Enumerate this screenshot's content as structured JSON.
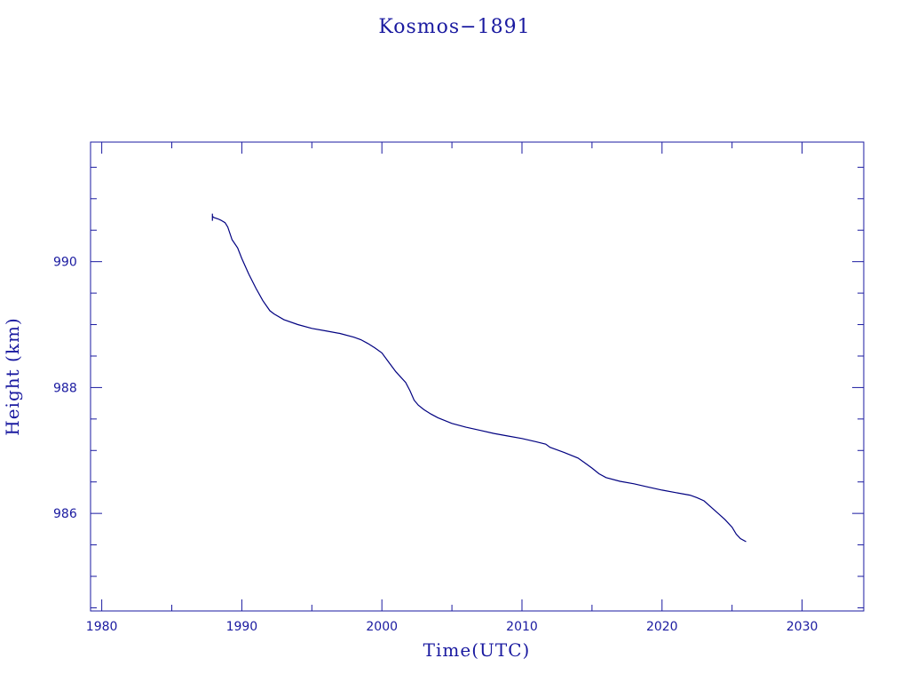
{
  "chart_data": {
    "type": "line",
    "title": "Kosmos−1891",
    "xlabel": "Time(UTC)",
    "ylabel": "Height (km)",
    "xlim": [
      1979.2,
      2034.4
    ],
    "ylim": [
      984.45,
      991.9
    ],
    "x_ticks": [
      1980,
      1990,
      2000,
      2010,
      2020,
      2030
    ],
    "x_tick_labels": [
      "1980",
      "1990",
      "2000",
      "2010",
      "2020",
      "2030"
    ],
    "y_ticks": [
      986,
      988,
      990
    ],
    "y_tick_labels": [
      "986",
      "988",
      "990"
    ],
    "grid": false,
    "colors": {
      "axis": "#1a1aa0",
      "line": "#000080",
      "text": "#1a1aa0"
    },
    "series": [
      {
        "x": [
          1987.9,
          1988.0,
          1988.3,
          1988.5,
          1988.8,
          1989.0,
          1989.3,
          1989.7,
          1990.0,
          1990.5,
          1991.0,
          1991.5,
          1992.0,
          1992.3,
          1993.0,
          1994.0,
          1995.0,
          1996.0,
          1997.0,
          1998.0,
          1998.5,
          1999.0,
          1999.5,
          2000.0,
          2000.5,
          2001.0,
          2001.7,
          2002.0,
          2002.3,
          2002.6,
          2003.0,
          2003.5,
          2004.0,
          2005.0,
          2006.0,
          2007.0,
          2008.0,
          2009.0,
          2010.0,
          2011.0,
          2011.7,
          2012.0,
          2013.0,
          2014.0,
          2014.5,
          2015.0,
          2015.5,
          2016.0,
          2017.0,
          2018.0,
          2019.0,
          2020.0,
          2021.0,
          2022.0,
          2022.5,
          2023.0,
          2023.5,
          2024.0,
          2024.5,
          2025.0,
          2025.3,
          2025.6,
          2026.0
        ],
        "y": [
          990.72,
          990.7,
          990.68,
          990.66,
          990.62,
          990.55,
          990.35,
          990.22,
          990.05,
          989.8,
          989.58,
          989.38,
          989.22,
          989.17,
          989.08,
          989.0,
          988.94,
          988.9,
          988.86,
          988.8,
          988.76,
          988.7,
          988.63,
          988.55,
          988.4,
          988.25,
          988.08,
          987.95,
          987.8,
          987.72,
          987.65,
          987.58,
          987.52,
          987.43,
          987.37,
          987.32,
          987.27,
          987.23,
          987.19,
          987.14,
          987.1,
          987.05,
          986.97,
          986.88,
          986.8,
          986.72,
          986.63,
          986.57,
          986.51,
          986.47,
          986.42,
          986.37,
          986.33,
          986.29,
          986.25,
          986.2,
          986.1,
          986.0,
          985.9,
          985.78,
          985.67,
          985.6,
          985.55
        ]
      }
    ]
  }
}
